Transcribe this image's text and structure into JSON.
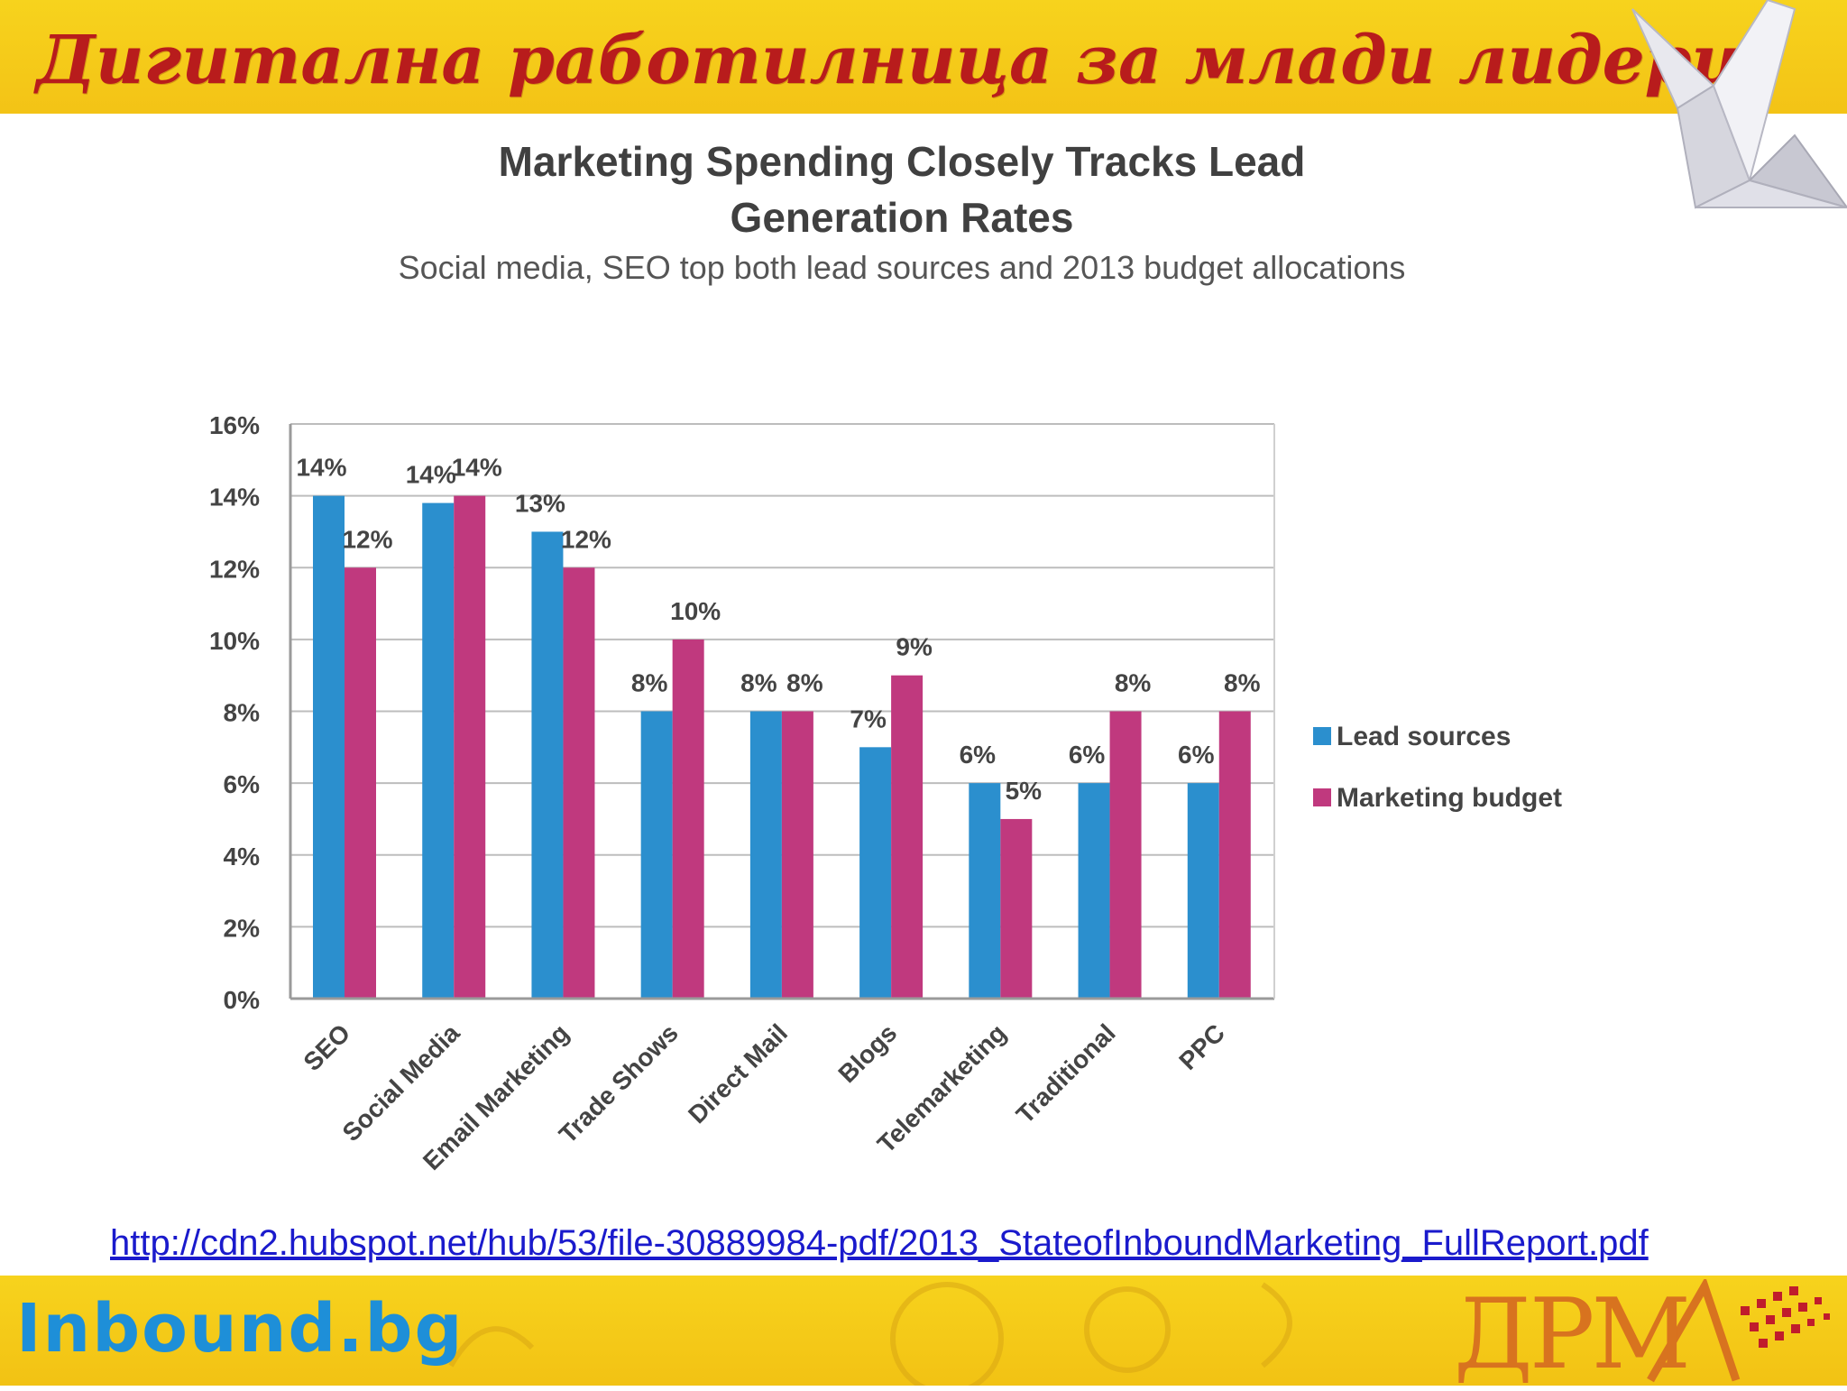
{
  "header": {
    "title": "Дигитална работилница за млади лидери"
  },
  "chart_data": {
    "type": "bar",
    "title_line1": "Marketing Spending Closely Tracks Lead",
    "title_line2": "Generation Rates",
    "subtitle": "Social media, SEO top both lead sources and 2013 budget allocations",
    "categories": [
      "SEO",
      "Social Media",
      "Email Marketing",
      "Trade Shows",
      "Direct Mail",
      "Blogs",
      "Telemarketing",
      "Traditional",
      "PPC"
    ],
    "series": [
      {
        "name": "Lead sources",
        "color": "#2b8fce",
        "values": [
          14,
          13.8,
          13,
          8,
          8,
          7,
          6,
          6,
          6
        ],
        "labels": [
          "14%",
          "14%",
          "13%",
          "8%",
          "8%",
          "7%",
          "6%",
          "6%",
          "6%"
        ]
      },
      {
        "name": "Marketing budget",
        "color": "#c0397e",
        "values": [
          12,
          14,
          12,
          10,
          8,
          9,
          5,
          8,
          8
        ],
        "labels": [
          "12%",
          "14%",
          "12%",
          "10%",
          "8%",
          "9%",
          "5%",
          "8%",
          "8%"
        ]
      }
    ],
    "yticks": [
      "0%",
      "2%",
      "4%",
      "6%",
      "8%",
      "10%",
      "12%",
      "14%",
      "16%"
    ],
    "ylim": [
      0,
      16
    ],
    "xlabel": "",
    "ylabel": "",
    "grid": true,
    "legend": "right"
  },
  "source": {
    "url": "http://cdn2.hubspot.net/hub/53/file-30889984-pdf/2013_StateofInboundMarketing_FullReport.pdf"
  },
  "logos": {
    "inbound": "Inbound.bg",
    "drma": "ДРМ"
  }
}
